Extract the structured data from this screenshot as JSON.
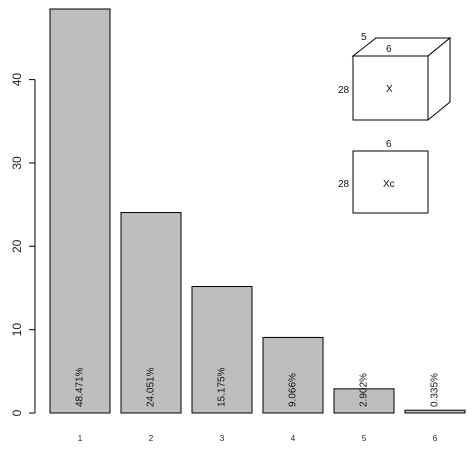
{
  "chart_data": {
    "type": "bar",
    "categories": [
      "1",
      "2",
      "3",
      "4",
      "5",
      "6"
    ],
    "values": [
      48.471,
      24.051,
      15.175,
      9.066,
      2.902,
      0.335
    ],
    "data_labels": [
      "48.471%",
      "24.051%",
      "15.175%",
      "9.066%",
      "2.902%",
      "0.335%"
    ],
    "ylim": [
      0,
      48.471
    ],
    "y_ticks": [
      0,
      10,
      20,
      30,
      40
    ],
    "title": "",
    "xlabel": "",
    "ylabel": "",
    "grid": false,
    "bar_color": "#bebebe"
  },
  "inset": {
    "cube": {
      "depth_label": "5",
      "width_label": "6",
      "height_label": "28",
      "face_label": "X"
    },
    "rect": {
      "width_label": "6",
      "height_label": "28",
      "face_label": "Xc"
    }
  }
}
